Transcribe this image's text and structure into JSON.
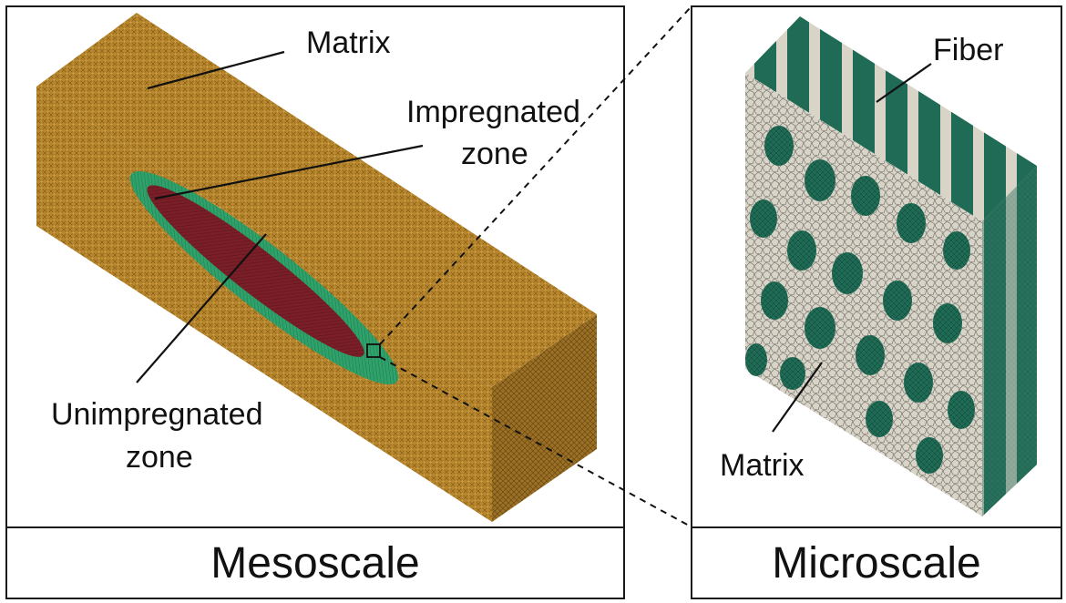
{
  "mesoscale": {
    "caption": "Mesoscale",
    "labels": {
      "matrix": "Matrix",
      "impregnated_1": "Impregnated",
      "impregnated_2": "zone",
      "unimpregnated_1": "Unimpregnated",
      "unimpregnated_2": "zone"
    }
  },
  "microscale": {
    "caption": "Microscale",
    "labels": {
      "fiber": "Fiber",
      "matrix": "Matrix"
    }
  },
  "colors": {
    "matrix_meso": "#b8862c",
    "impregnated": "#2fa16a",
    "unimpregnated": "#7a1e28",
    "fiber": "#1f6b55",
    "matrix_micro": "#d8d4c8"
  }
}
